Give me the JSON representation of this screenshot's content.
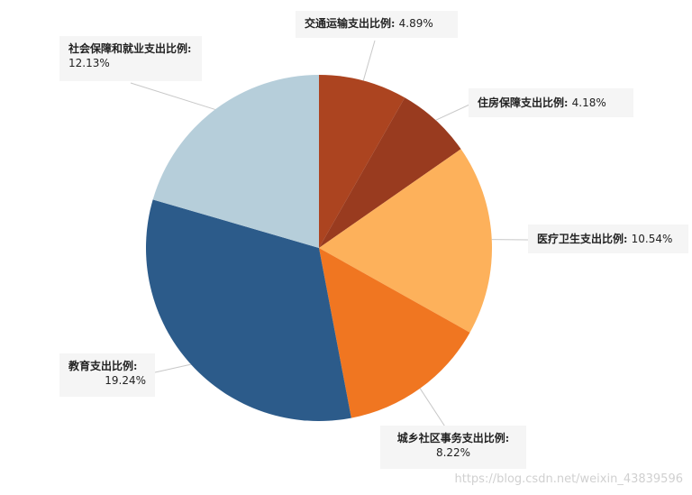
{
  "chart_data": {
    "type": "pie",
    "title": "",
    "slices": [
      {
        "label": "交通运输支出比例",
        "value": 4.89,
        "display": "4.89%",
        "color": "#ac4420"
      },
      {
        "label": "住房保障支出比例",
        "value": 4.18,
        "display": "4.18%",
        "color": "#993b1f"
      },
      {
        "label": "医疗卫生支出比例",
        "value": 10.54,
        "display": "10.54%",
        "color": "#fdb15b"
      },
      {
        "label": "城乡社区事务支出比例",
        "value": 8.22,
        "display": "8.22%",
        "color": "#f07621"
      },
      {
        "label": "教育支出比例",
        "value": 19.24,
        "display": "19.24%",
        "color": "#2c5b8a"
      },
      {
        "label": "社会保障和就业支出比例",
        "value": 12.13,
        "display": "12.13%",
        "color": "#b6ceda"
      }
    ],
    "start_angle": "12 o'clock",
    "direction": "clockwise"
  },
  "watermark": "https://blog.csdn.net/weixin_43839596"
}
